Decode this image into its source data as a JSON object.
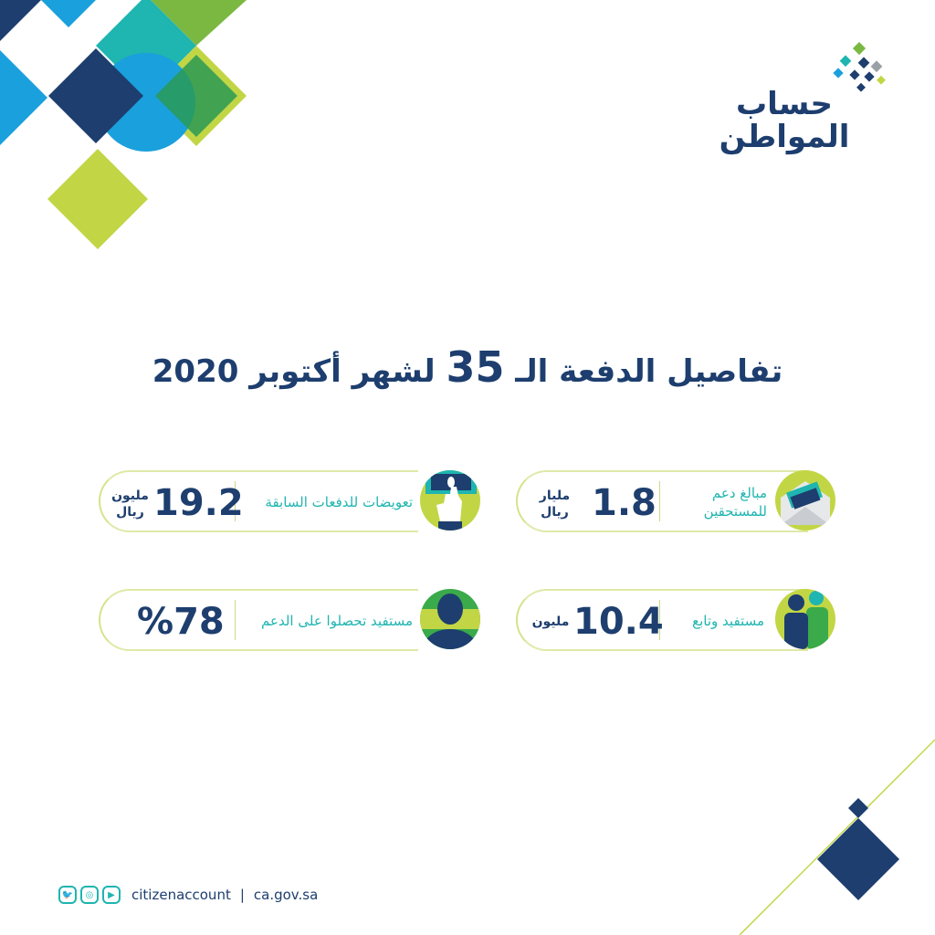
{
  "logo": {
    "line1": "حساب",
    "line2": "المواطن"
  },
  "title": {
    "prefix": "تفاصيل الدفعة الـ",
    "number": "35",
    "suffix": "لشهر أكتوبر 2020"
  },
  "cards": [
    {
      "label_line1": "مبالغ دعم",
      "label_line2": "للمستحقين",
      "value": "1.8",
      "unit_line1": "مليار",
      "unit_line2": "ريال",
      "icon": "envelope-money-icon"
    },
    {
      "label_line1": "تعويضات للدفعات السابقة",
      "value": "19.2",
      "unit_line1": "مليون",
      "unit_line2": "ريال",
      "icon": "hand-money-icon"
    },
    {
      "label_line1": "مستفيد وتابع",
      "value": "10.4",
      "unit_line1": "مليون",
      "icon": "people-icon"
    },
    {
      "label_line1": "مستفيد تحصلوا على الدعم",
      "value": "%78",
      "icon": "user-icon"
    }
  ],
  "footer": {
    "handle": "citizenaccount",
    "separator": "|",
    "website": "ca.gov.sa",
    "icons": [
      "twitter-icon",
      "instagram-icon",
      "youtube-icon"
    ]
  },
  "colors": {
    "navy": "#1d3e6e",
    "teal": "#1fb5b0",
    "lime": "#c2d645",
    "green": "#3aaa4a",
    "blue": "#1aa0dc"
  }
}
